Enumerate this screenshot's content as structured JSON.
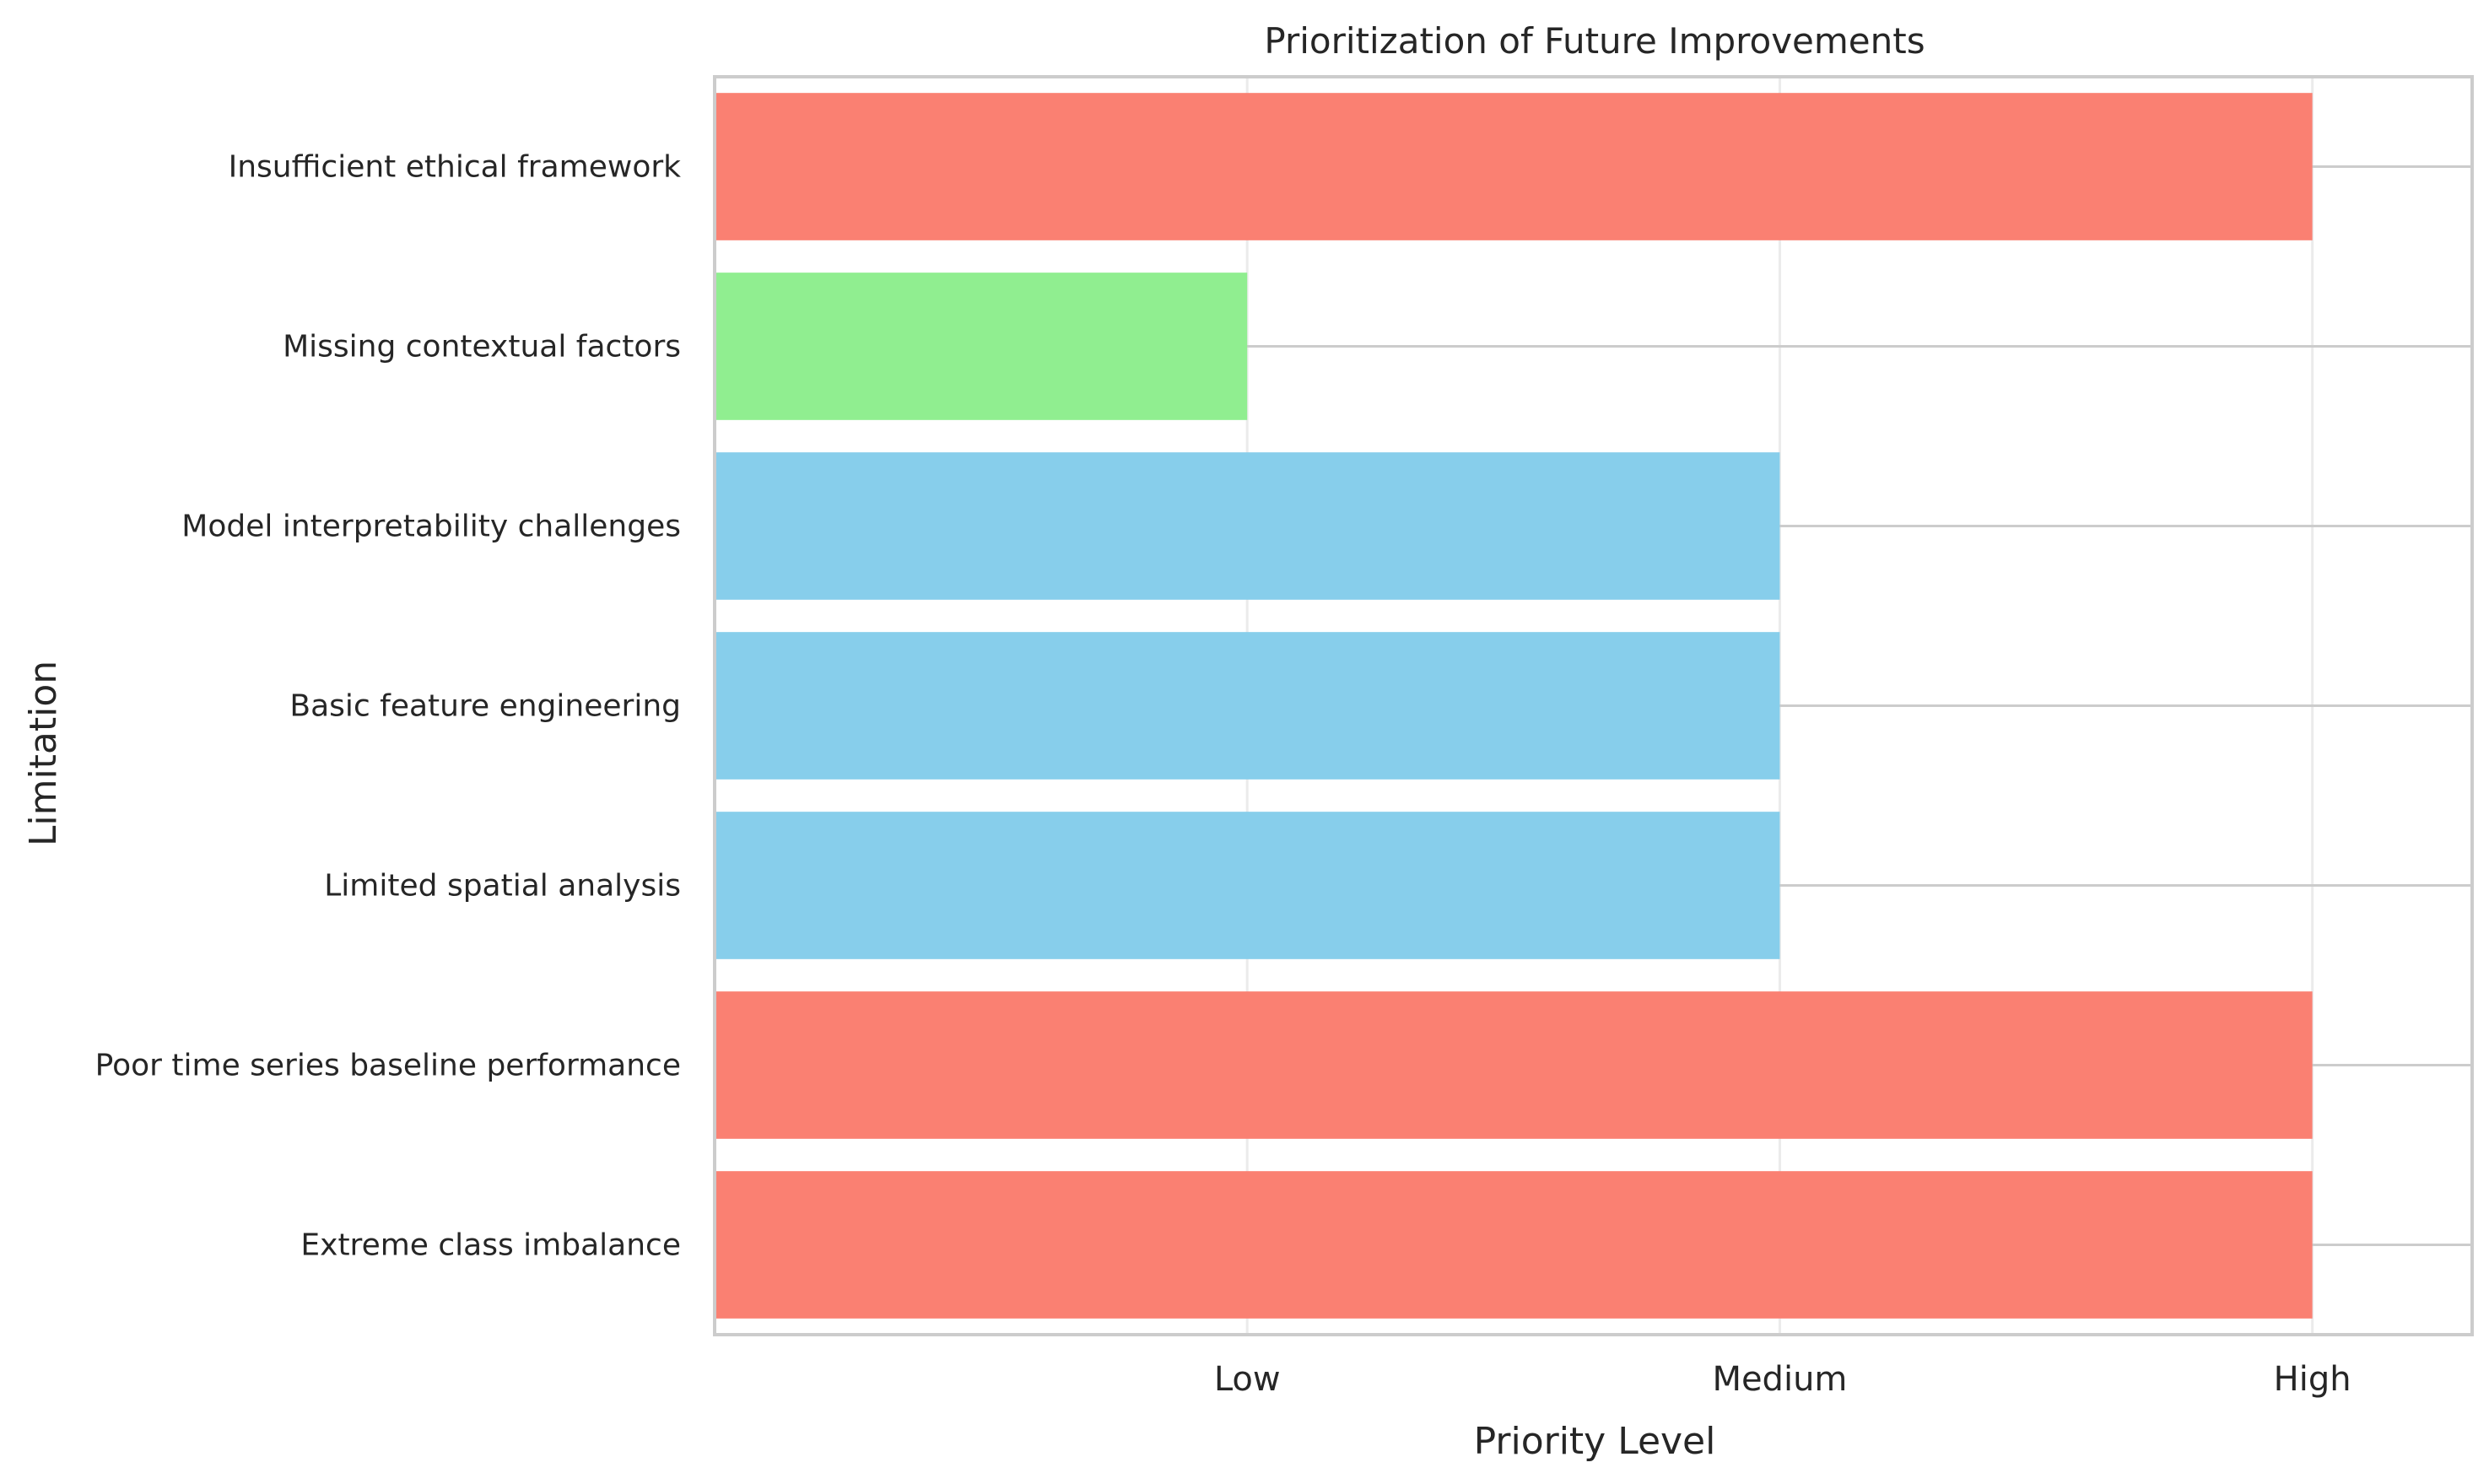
{
  "chart_data": {
    "type": "bar",
    "orientation": "horizontal",
    "title": "Prioritization of Future Improvements",
    "xlabel": "Priority Level",
    "ylabel": "Limitation",
    "x_ticks": [
      {
        "value": 1,
        "label": "Low"
      },
      {
        "value": 2,
        "label": "Medium"
      },
      {
        "value": 3,
        "label": "High"
      }
    ],
    "xlim": [
      0,
      3.3
    ],
    "categories": [
      "Extreme class imbalance",
      "Poor time series baseline performance",
      "Limited spatial analysis",
      "Basic feature engineering",
      "Model interpretability challenges",
      "Missing contextual factors",
      "Insufficient ethical framework"
    ],
    "values": [
      3,
      3,
      2,
      2,
      2,
      1,
      3
    ],
    "priority_colors": {
      "Low": "#90ee90",
      "Medium": "#87ceeb",
      "High": "#fa8072"
    },
    "grid": true,
    "legend": "none"
  }
}
